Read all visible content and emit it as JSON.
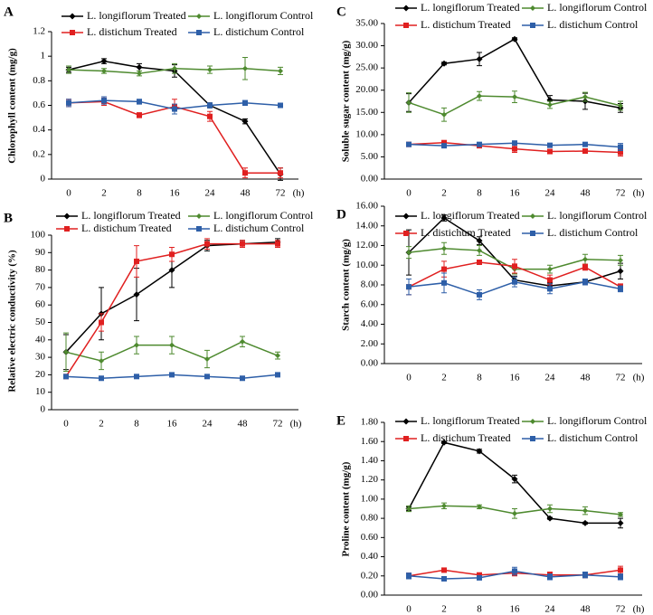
{
  "chart_data": [
    {
      "type": "line",
      "panel": "A",
      "ylabel": "Chlorophyll  content (mg/g)",
      "xlabel": "(h)",
      "categories": [
        "0",
        "2",
        "8",
        "16",
        "24",
        "48",
        "72"
      ],
      "ylim": [
        0,
        1.2
      ],
      "yticks": [
        0,
        0.2,
        0.4,
        0.6,
        0.8,
        1,
        1.2
      ],
      "series": [
        {
          "name": "L. longiflorum Treated",
          "color": "#000000",
          "marker": "diamond",
          "values": [
            0.89,
            0.96,
            0.91,
            0.88,
            0.6,
            0.47,
            0.04
          ],
          "errors": [
            0.02,
            0.02,
            0.03,
            0.05,
            0.02,
            0.02,
            0.05
          ]
        },
        {
          "name": "L. longiflorum Control",
          "color": "#4e8a2f",
          "marker": "diamond",
          "values": [
            0.89,
            0.88,
            0.86,
            0.9,
            0.89,
            0.9,
            0.88
          ],
          "errors": [
            0.03,
            0.02,
            0.02,
            0.04,
            0.03,
            0.09,
            0.03
          ]
        },
        {
          "name": "L. distichum Treated",
          "color": "#e02020",
          "marker": "square",
          "values": [
            0.62,
            0.63,
            0.52,
            0.59,
            0.51,
            0.05,
            0.05
          ],
          "errors": [
            0.03,
            0.03,
            0.02,
            0.06,
            0.04,
            0.04,
            0.04
          ]
        },
        {
          "name": "L. distichum Control",
          "color": "#2e5fa8",
          "marker": "square",
          "values": [
            0.62,
            0.64,
            0.63,
            0.57,
            0.6,
            0.62,
            0.6
          ],
          "errors": [
            0.03,
            0.03,
            0.02,
            0.04,
            0.02,
            0.02,
            0.01
          ]
        }
      ]
    },
    {
      "type": "line",
      "panel": "B",
      "ylabel": "Relative electric conductivity  (%)",
      "xlabel": "(h)",
      "categories": [
        "0",
        "2",
        "8",
        "16",
        "24",
        "48",
        "72"
      ],
      "ylim": [
        0,
        100
      ],
      "yticks": [
        0,
        10,
        20,
        30,
        40,
        50,
        60,
        70,
        80,
        90,
        100
      ],
      "series": [
        {
          "name": "L. longiflorum Treated",
          "color": "#000000",
          "marker": "diamond",
          "values": [
            33,
            55,
            66,
            80,
            94,
            95,
            96
          ],
          "errors": [
            10,
            15,
            15,
            10,
            3,
            2,
            2
          ]
        },
        {
          "name": "L. longiflorum Control",
          "color": "#4e8a2f",
          "marker": "diamond",
          "values": [
            33,
            28,
            37,
            37,
            29,
            39,
            31
          ],
          "errors": [
            11,
            5,
            5,
            5,
            5,
            3,
            2
          ]
        },
        {
          "name": "L. distichum Treated",
          "color": "#e02020",
          "marker": "square",
          "values": [
            19,
            50,
            85,
            89,
            95,
            95,
            95
          ],
          "errors": [
            1,
            5,
            9,
            4,
            3,
            2,
            2
          ]
        },
        {
          "name": "L. distichum Control",
          "color": "#2e5fa8",
          "marker": "square",
          "values": [
            19,
            18,
            19,
            20,
            19,
            18,
            20
          ],
          "errors": [
            1,
            1,
            1,
            1,
            1,
            1,
            1
          ]
        }
      ]
    },
    {
      "type": "line",
      "panel": "C",
      "ylabel": "Soluble sugar content (mg/g)",
      "xlabel": "(h)",
      "categories": [
        "0",
        "2",
        "8",
        "16",
        "24",
        "48",
        "72"
      ],
      "ylim": [
        0,
        35
      ],
      "yticks": [
        {
          "value": 0,
          "label": "0.00"
        },
        {
          "value": 5,
          "label": "5.00"
        },
        {
          "value": 10,
          "label": "10.00"
        },
        {
          "value": 15,
          "label": "15.00"
        },
        {
          "value": 20,
          "label": "20.00"
        },
        {
          "value": 25,
          "label": "25.00"
        },
        {
          "value": 30,
          "label": "30.00"
        },
        {
          "value": 35,
          "label": "35.00"
        }
      ],
      "series": [
        {
          "name": "L. longiflorum Treated",
          "color": "#000000",
          "marker": "diamond",
          "values": [
            17.2,
            26,
            27,
            31.5,
            17.8,
            17.5,
            16
          ],
          "errors": [
            2,
            0.3,
            1.5,
            0.3,
            1,
            1.8,
            1
          ]
        },
        {
          "name": "L. longiflorum Control",
          "color": "#4e8a2f",
          "marker": "diamond",
          "values": [
            17.2,
            14.5,
            18.7,
            18.5,
            16.7,
            18.5,
            16.5
          ],
          "errors": [
            2.2,
            1.5,
            1,
            1.3,
            0.8,
            1,
            1
          ]
        },
        {
          "name": "L. distichum Treated",
          "color": "#e02020",
          "marker": "square",
          "values": [
            7.8,
            8.2,
            7.5,
            6.8,
            6.2,
            6.3,
            6
          ],
          "errors": [
            0.3,
            0.3,
            0.3,
            0.8,
            0.3,
            0.3,
            0.8
          ]
        },
        {
          "name": "L. distichum Control",
          "color": "#2e5fa8",
          "marker": "square",
          "values": [
            7.8,
            7.5,
            7.8,
            8.1,
            7.6,
            7.8,
            7.2
          ],
          "errors": [
            0.3,
            0.3,
            0.3,
            0.3,
            0.3,
            0.3,
            0.8
          ]
        }
      ]
    },
    {
      "type": "line",
      "panel": "D",
      "ylabel": "Starch content (mg/g)",
      "xlabel": "(h)",
      "categories": [
        "0",
        "2",
        "8",
        "16",
        "24",
        "48",
        "72"
      ],
      "ylim": [
        0,
        16
      ],
      "yticks": [
        {
          "value": 0,
          "label": "0.00"
        },
        {
          "value": 2,
          "label": "2.00"
        },
        {
          "value": 4,
          "label": "4.00"
        },
        {
          "value": 6,
          "label": "6.00"
        },
        {
          "value": 8,
          "label": "8.00"
        },
        {
          "value": 10,
          "label": "10.00"
        },
        {
          "value": 12,
          "label": "12.00"
        },
        {
          "value": 14,
          "label": "14.00"
        },
        {
          "value": 16,
          "label": "16.00"
        }
      ],
      "series": [
        {
          "name": "L. longiflorum Treated",
          "color": "#000000",
          "marker": "diamond",
          "values": [
            11.3,
            14.8,
            12.5,
            8.5,
            7.9,
            8.3,
            9.4
          ],
          "errors": [
            2.3,
            0.3,
            0.4,
            0.4,
            0.3,
            0.3,
            0.8
          ]
        },
        {
          "name": "L. longiflorum Control",
          "color": "#4e8a2f",
          "marker": "diamond",
          "values": [
            11.3,
            11.7,
            11.5,
            9.6,
            9.6,
            10.6,
            10.5
          ],
          "errors": [
            0.6,
            0.6,
            0.5,
            0.5,
            0.4,
            0.5,
            0.5
          ]
        },
        {
          "name": "L. distichum Treated",
          "color": "#e02020",
          "marker": "square",
          "values": [
            7.8,
            9.6,
            10.3,
            9.9,
            8.5,
            9.8,
            7.8
          ],
          "errors": [
            0.8,
            0.8,
            0.2,
            0.7,
            0.5,
            0.3,
            0.3
          ]
        },
        {
          "name": "L. distichum Control",
          "color": "#2e5fa8",
          "marker": "square",
          "values": [
            7.8,
            8.2,
            7,
            8.3,
            7.6,
            8.3,
            7.6
          ],
          "errors": [
            0.8,
            1,
            0.5,
            0.5,
            0.5,
            0.3,
            0.3
          ]
        }
      ]
    },
    {
      "type": "line",
      "panel": "E",
      "ylabel": "Proline  content (mg/g)",
      "xlabel": "(h)",
      "categories": [
        "0",
        "2",
        "8",
        "16",
        "24",
        "48",
        "72"
      ],
      "ylim": [
        0,
        1.8
      ],
      "yticks": [
        {
          "value": 0,
          "label": "0.00"
        },
        {
          "value": 0.2,
          "label": "0.20"
        },
        {
          "value": 0.4,
          "label": "0.40"
        },
        {
          "value": 0.6,
          "label": "0.60"
        },
        {
          "value": 0.8,
          "label": "0.80"
        },
        {
          "value": 1,
          "label": "1.00"
        },
        {
          "value": 1.2,
          "label": "1.20"
        },
        {
          "value": 1.4,
          "label": "1.40"
        },
        {
          "value": 1.6,
          "label": "1.60"
        },
        {
          "value": 1.8,
          "label": "1.80"
        }
      ],
      "series": [
        {
          "name": "L. longiflorum Treated",
          "color": "#000000",
          "marker": "diamond",
          "values": [
            0.9,
            1.59,
            1.5,
            1.21,
            0.8,
            0.75,
            0.75
          ],
          "errors": [
            0.02,
            0.01,
            0.02,
            0.04,
            0.01,
            0.01,
            0.05
          ]
        },
        {
          "name": "L. longiflorum Control",
          "color": "#4e8a2f",
          "marker": "diamond",
          "values": [
            0.9,
            0.93,
            0.92,
            0.85,
            0.9,
            0.88,
            0.84
          ],
          "errors": [
            0.03,
            0.03,
            0.02,
            0.05,
            0.04,
            0.04,
            0.02
          ]
        },
        {
          "name": "L. distichum Treated",
          "color": "#e02020",
          "marker": "square",
          "values": [
            0.2,
            0.26,
            0.21,
            0.23,
            0.21,
            0.21,
            0.26
          ],
          "errors": [
            0.03,
            0.02,
            0.02,
            0.03,
            0.03,
            0.03,
            0.04
          ]
        },
        {
          "name": "L. distichum Control",
          "color": "#2e5fa8",
          "marker": "square",
          "values": [
            0.2,
            0.17,
            0.18,
            0.25,
            0.19,
            0.21,
            0.19
          ],
          "errors": [
            0.03,
            0.02,
            0.02,
            0.04,
            0.03,
            0.03,
            0.03
          ]
        }
      ]
    }
  ]
}
